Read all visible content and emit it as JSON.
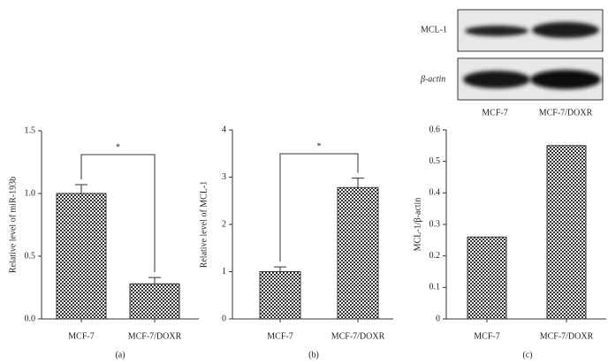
{
  "chart_data": [
    {
      "type": "bar",
      "ylabel": "Relative level of miR-193b",
      "categories": [
        "MCF-7",
        "MCF-7/DOXR"
      ],
      "values": [
        1.0,
        0.28
      ],
      "errors": [
        0.07,
        0.05
      ],
      "ylim": [
        0,
        1.5
      ],
      "yticks": [
        {
          "value": 0,
          "label": "0.0"
        },
        0.5,
        {
          "value": 1,
          "label": "1.0"
        },
        1.5
      ],
      "annotation": "*",
      "caption": "(a)"
    },
    {
      "type": "bar",
      "ylabel": "Relative level of MCL-1",
      "categories": [
        "MCF-7",
        "MCF-7/DOXR"
      ],
      "values": [
        1.0,
        2.78
      ],
      "errors": [
        0.1,
        0.2
      ],
      "ylim": [
        0,
        4
      ],
      "yticks": [
        0,
        1,
        2,
        3,
        4
      ],
      "annotation": "*",
      "caption": "(b)"
    },
    {
      "type": "bar",
      "ylabel": "MCL-1/β-actin",
      "categories": [
        "MCF-7",
        "MCF-7/DOXR"
      ],
      "values": [
        0.26,
        0.55
      ],
      "ylim": [
        0,
        0.6
      ],
      "yticks": [
        0,
        0.1,
        0.2,
        0.3,
        0.4,
        0.5,
        0.6
      ],
      "caption": "(c)"
    }
  ],
  "blot": {
    "rows": [
      "MCL-1",
      "β-actin"
    ],
    "columns": [
      "MCF-7",
      "MCF-7/DOXR"
    ]
  }
}
